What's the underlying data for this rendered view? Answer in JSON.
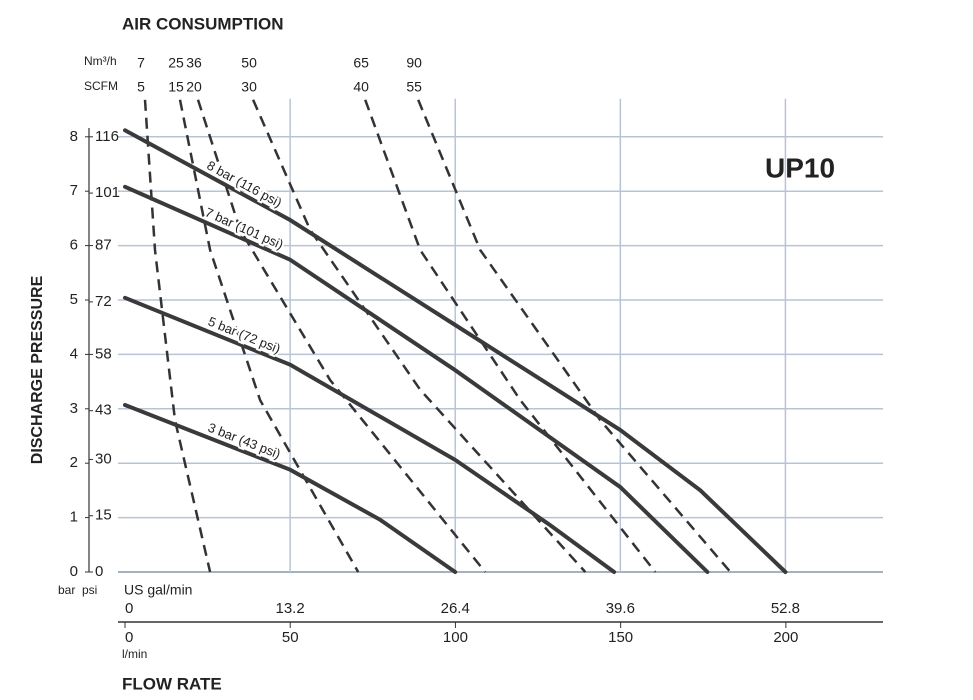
{
  "chart_data": {
    "type": "line",
    "title": "UP10",
    "top_label": "AIR CONSUMPTION",
    "air_unit": "Nm³/h",
    "air_unit2": "SCFM",
    "y_label": "DISCHARGE PRESSURE",
    "y_unit": "bar",
    "y2_unit": "psi",
    "x_unit": "US gal/min",
    "x2_unit": "l/min",
    "x_label": "FLOW RATE",
    "xlim": [
      0,
      60.6
    ],
    "xticks": [
      0,
      13.2,
      26.4,
      39.6,
      52.8
    ],
    "x2lim": [
      0,
      229.4
    ],
    "x2ticks": [
      0,
      50,
      100,
      150,
      200
    ],
    "ylim": [
      0,
      8.7
    ],
    "yticks": [
      0,
      1,
      2,
      3,
      4,
      5,
      6,
      7,
      8
    ],
    "y2lim": [
      0,
      126.15
    ],
    "y2ticks": [
      0,
      15,
      30,
      43,
      58,
      72,
      87,
      101,
      116
    ],
    "grid": true,
    "series": [
      {
        "name": "8 bar (116 psi)",
        "color": "#3a3a3a",
        "x": [
          0,
          13.2,
          26.4,
          39.6,
          46,
          52.8
        ],
        "values": [
          8.12,
          6.47,
          4.54,
          2.61,
          1.5,
          0
        ]
      },
      {
        "name": "7 bar (101 psi)",
        "color": "#3a3a3a",
        "x": [
          0,
          13.2,
          26.4,
          39.6,
          46.56
        ],
        "values": [
          7.08,
          5.74,
          3.71,
          1.56,
          0
        ]
      },
      {
        "name": "5 bar (72 psi)",
        "color": "#3a3a3a",
        "x": [
          0,
          13.2,
          26.4,
          34,
          39.1
        ],
        "values": [
          5.04,
          3.81,
          2.06,
          0.86,
          0
        ]
      },
      {
        "name": "3 bar (43 psi)",
        "color": "#3a3a3a",
        "x": [
          0,
          13.2,
          20.4,
          26.4
        ],
        "values": [
          3.07,
          1.88,
          0.96,
          0
        ]
      }
    ],
    "air_curves": [
      {
        "nm3h": 7,
        "scfm": 5,
        "color": "#333333",
        "x": [
          1.6,
          2.4,
          4.0,
          6.8
        ],
        "values": [
          8.68,
          5.92,
          2.79,
          0
        ]
      },
      {
        "nm3h": 25,
        "scfm": 15,
        "color": "#333333",
        "x": [
          4.4,
          6.8,
          10.8,
          18.64
        ],
        "values": [
          8.68,
          5.92,
          3.16,
          0
        ]
      },
      {
        "nm3h": 36,
        "scfm": 20,
        "color": "#333333",
        "x": [
          5.84,
          9.2,
          16.4,
          28.8
        ],
        "values": [
          8.68,
          6.29,
          3.53,
          0
        ]
      },
      {
        "nm3h": 50,
        "scfm": 30,
        "color": "#333333",
        "x": [
          10.24,
          14.8,
          23.6,
          36.8
        ],
        "values": [
          8.68,
          6.29,
          3.35,
          0
        ]
      },
      {
        "nm3h": 65,
        "scfm": 40,
        "color": "#333333",
        "x": [
          19.2,
          23.6,
          31.6,
          42.4
        ],
        "values": [
          8.68,
          5.92,
          3.16,
          0
        ]
      },
      {
        "nm3h": 90,
        "scfm": 55,
        "color": "#333333",
        "x": [
          23.44,
          28.4,
          38,
          48.4
        ],
        "values": [
          8.68,
          5.92,
          2.79,
          0
        ]
      }
    ]
  }
}
